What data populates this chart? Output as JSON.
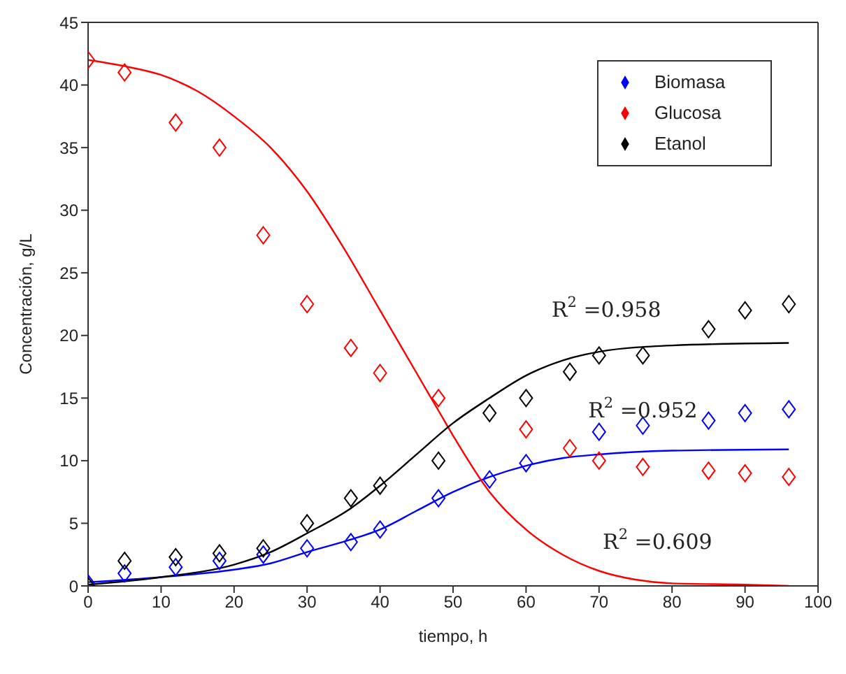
{
  "chart_data": {
    "type": "scatter",
    "xlabel": "tiempo, h",
    "ylabel": "Concentración, g/L",
    "xlim": [
      0,
      100
    ],
    "xticks": [
      0,
      10,
      20,
      30,
      40,
      50,
      60,
      70,
      80,
      90,
      100
    ],
    "ylim": [
      0,
      45
    ],
    "yticks": [
      0,
      5,
      10,
      15,
      20,
      25,
      30,
      35,
      40,
      45
    ],
    "grid": false,
    "legend": "top right",
    "marker": "diamond",
    "series": [
      {
        "name": "Biomasa",
        "color": "#0000ff",
        "x": [
          0,
          5,
          12,
          18,
          24,
          30,
          36,
          40,
          48,
          55,
          60,
          70,
          76,
          85,
          90,
          96
        ],
        "values": [
          0.2,
          1,
          1.5,
          2,
          2.5,
          3,
          3.5,
          4.5,
          7,
          8.5,
          9.8,
          12.3,
          12.8,
          13.2,
          13.8,
          14.1
        ]
      },
      {
        "name": "Glucosa",
        "color": "#ff0000",
        "x": [
          0,
          5,
          12,
          18,
          24,
          30,
          36,
          40,
          48,
          60,
          66,
          70,
          76,
          85,
          90,
          96
        ],
        "values": [
          42,
          41,
          37,
          35,
          28,
          22.5,
          19,
          17,
          15,
          12.5,
          11,
          10,
          9.5,
          9.2,
          9,
          8.7
        ]
      },
      {
        "name": "Etanol",
        "color": "#000000",
        "x": [
          0,
          5,
          12,
          18,
          24,
          30,
          36,
          40,
          48,
          55,
          60,
          66,
          70,
          76,
          85,
          90,
          96
        ],
        "values": [
          0,
          2,
          2.3,
          2.6,
          3,
          5,
          7,
          8,
          10,
          13.8,
          15,
          17.1,
          18.4,
          18.4,
          20.5,
          22,
          22.5
        ]
      },
      {
        "type": "line",
        "color": "#0000ff",
        "marker": "none",
        "x": [
          0,
          10,
          20,
          25,
          30,
          36,
          40,
          45,
          50,
          55,
          60,
          65,
          70,
          80,
          96
        ],
        "values": [
          0.3,
          0.7,
          1.3,
          1.8,
          2.7,
          3.7,
          4.5,
          6,
          7.5,
          8.7,
          9.6,
          10.2,
          10.5,
          10.8,
          10.9
        ]
      },
      {
        "type": "line",
        "color": "#ff0000",
        "marker": "none",
        "x": [
          0,
          5,
          10,
          15,
          20,
          25,
          30,
          35,
          40,
          45,
          48,
          50,
          55,
          60,
          65,
          70,
          75,
          80,
          90,
          96
        ],
        "values": [
          42,
          41.5,
          40.8,
          39.5,
          37.5,
          35,
          31.5,
          27,
          22,
          17,
          14,
          12,
          7.5,
          4.5,
          2.5,
          1.2,
          0.5,
          0.2,
          0.1,
          0
        ]
      },
      {
        "type": "line",
        "color": "#000000",
        "marker": "none",
        "x": [
          0,
          10,
          20,
          25,
          30,
          36,
          40,
          45,
          50,
          55,
          60,
          65,
          70,
          80,
          96
        ],
        "values": [
          0.1,
          0.7,
          1.7,
          2.7,
          4.2,
          6.2,
          8,
          10.5,
          13,
          15,
          16.8,
          18,
          18.7,
          19.2,
          19.4
        ]
      }
    ],
    "annotations": [
      {
        "text": "R$^{2}$ =0.958",
        "x": 71,
        "y": 18.8
      },
      {
        "text": "R$^{2}$ =0.952",
        "x": 76,
        "y": 10.8
      },
      {
        "text": "R$^{2}$ =0.609",
        "x": 78,
        "y": 0.3
      }
    ]
  }
}
